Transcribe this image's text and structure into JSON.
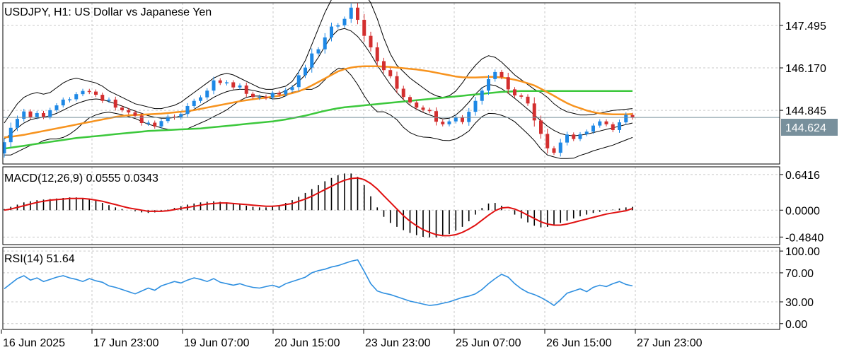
{
  "chart_data": [
    {
      "type": "candlestick",
      "title": "USDJPY, H1:  US Dollar vs Japanese Yen",
      "symbol": "USDJPY",
      "timeframe": "H1",
      "current_price": 144.624,
      "current_price_label": "144.624",
      "y_ticks": [
        147.495,
        146.17,
        144.845
      ],
      "y_tick_labels": [
        "147.495",
        "146.170",
        "144.845"
      ],
      "ylim": [
        143.17,
        148.2
      ],
      "grid": true,
      "candles_open": [
        143.5,
        143.85,
        144.3,
        144.58,
        144.81,
        144.63,
        144.76,
        144.64,
        144.85,
        145.0,
        145.18,
        145.19,
        145.35,
        145.45,
        145.43,
        145.33,
        145.14,
        145.18,
        144.93,
        144.85,
        144.78,
        144.68,
        144.45,
        144.46,
        144.34,
        144.51,
        144.65,
        144.62,
        144.73,
        144.98,
        145.14,
        145.25,
        145.46,
        145.78,
        145.7,
        145.72,
        145.56,
        145.62,
        145.36,
        145.26,
        145.27,
        145.24,
        145.39,
        145.34,
        145.48,
        145.57,
        145.94,
        146.18,
        146.62,
        146.75,
        147.12,
        147.46,
        147.5,
        147.7,
        148.05,
        147.67,
        147.17,
        146.81,
        146.38,
        146.1,
        145.91,
        145.52,
        145.26,
        145.09,
        144.93,
        144.86,
        144.82,
        144.49,
        144.41,
        144.5,
        144.63,
        144.48,
        144.8,
        145.14,
        145.46,
        145.82,
        146.04,
        145.88,
        145.5,
        145.31,
        145.27,
        145.06,
        144.53,
        144.11,
        143.66,
        143.52,
        143.84,
        144.09,
        143.95,
        144.1,
        144.18,
        144.37,
        144.5,
        144.41,
        144.23,
        144.47,
        144.7
      ],
      "candles_close": [
        143.85,
        144.3,
        144.58,
        144.81,
        144.63,
        144.76,
        144.64,
        144.85,
        145.0,
        145.18,
        145.19,
        145.35,
        145.45,
        145.43,
        145.33,
        145.14,
        145.18,
        144.93,
        144.85,
        144.78,
        144.68,
        144.45,
        144.46,
        144.34,
        144.51,
        144.65,
        144.62,
        144.73,
        144.98,
        145.14,
        145.25,
        145.46,
        145.78,
        145.7,
        145.72,
        145.56,
        145.62,
        145.36,
        145.26,
        145.27,
        145.24,
        145.39,
        145.34,
        145.48,
        145.57,
        145.94,
        146.18,
        146.62,
        146.75,
        147.12,
        147.46,
        147.5,
        147.7,
        148.05,
        147.67,
        147.17,
        146.81,
        146.38,
        146.1,
        145.91,
        145.52,
        145.26,
        145.09,
        144.93,
        144.86,
        144.82,
        144.49,
        144.41,
        144.5,
        144.63,
        144.48,
        144.8,
        145.14,
        145.46,
        145.82,
        146.04,
        145.88,
        145.5,
        145.31,
        145.27,
        145.06,
        144.53,
        144.11,
        143.66,
        143.52,
        143.84,
        144.09,
        143.95,
        144.1,
        144.18,
        144.37,
        144.5,
        144.41,
        144.23,
        144.47,
        144.7,
        144.62
      ],
      "ma_orange": [
        144.0,
        144.02,
        144.05,
        144.08,
        144.12,
        144.16,
        144.2,
        144.24,
        144.28,
        144.32,
        144.36,
        144.4,
        144.44,
        144.48,
        144.52,
        144.56,
        144.6,
        144.64,
        144.67,
        144.69,
        144.7,
        144.71,
        144.72,
        144.73,
        144.74,
        144.76,
        144.78,
        144.8,
        144.82,
        144.85,
        144.89,
        144.93,
        144.97,
        145.01,
        145.05,
        145.09,
        145.13,
        145.16,
        145.19,
        145.22,
        145.24,
        145.27,
        145.3,
        145.34,
        145.38,
        145.44,
        145.52,
        145.62,
        145.73,
        145.84,
        145.95,
        146.06,
        146.13,
        146.18,
        146.21,
        146.22,
        146.22,
        146.22,
        146.21,
        146.2,
        146.18,
        146.16,
        146.14,
        146.12,
        146.09,
        146.06,
        146.02,
        145.98,
        145.94,
        145.9,
        145.88,
        145.87,
        145.87,
        145.88,
        145.89,
        145.89,
        145.87,
        145.84,
        145.8,
        145.75,
        145.69,
        145.62,
        145.52,
        145.41,
        145.3,
        145.18,
        145.07,
        144.98,
        144.91,
        144.84,
        144.79,
        144.75,
        144.73,
        144.72,
        144.72,
        144.72,
        144.73
      ],
      "ma_green": [
        143.65,
        143.68,
        143.71,
        143.74,
        143.77,
        143.8,
        143.83,
        143.86,
        143.89,
        143.92,
        143.95,
        143.98,
        144.0,
        144.02,
        144.04,
        144.06,
        144.08,
        144.1,
        144.12,
        144.14,
        144.16,
        144.18,
        144.2,
        144.21,
        144.22,
        144.23,
        144.24,
        144.25,
        144.26,
        144.27,
        144.28,
        144.3,
        144.32,
        144.34,
        144.36,
        144.38,
        144.4,
        144.42,
        144.44,
        144.46,
        144.48,
        144.5,
        144.53,
        144.56,
        144.6,
        144.64,
        144.68,
        144.73,
        144.78,
        144.83,
        144.87,
        144.91,
        144.94,
        144.96,
        144.98,
        145.0,
        145.02,
        145.04,
        145.06,
        145.08,
        145.1,
        145.12,
        145.14,
        145.16,
        145.18,
        145.2,
        145.22,
        145.24,
        145.26,
        145.28,
        145.3,
        145.32,
        145.34,
        145.36,
        145.38,
        145.4,
        145.42,
        145.43,
        145.44,
        145.45,
        145.45,
        145.45,
        145.45,
        145.45,
        145.45,
        145.45,
        145.45,
        145.45,
        145.45,
        145.45,
        145.45,
        145.45,
        145.45,
        145.45,
        145.45,
        145.45,
        145.45
      ],
      "bb_upper": [
        144.45,
        144.75,
        145.05,
        145.25,
        145.35,
        145.4,
        145.35,
        145.4,
        145.55,
        145.7,
        145.8,
        145.85,
        145.8,
        145.75,
        145.7,
        145.6,
        145.45,
        145.35,
        145.25,
        145.15,
        145.05,
        145.0,
        144.95,
        144.9,
        144.9,
        144.95,
        145.0,
        145.1,
        145.25,
        145.4,
        145.55,
        145.7,
        145.85,
        145.95,
        146.0,
        145.95,
        145.85,
        145.75,
        145.65,
        145.55,
        145.5,
        145.5,
        145.55,
        145.6,
        145.75,
        146.05,
        146.4,
        146.9,
        147.4,
        147.9,
        148.3,
        148.55,
        148.65,
        148.7,
        148.65,
        148.5,
        148.2,
        147.7,
        147.1,
        146.6,
        146.25,
        146.05,
        145.85,
        145.7,
        145.55,
        145.4,
        145.3,
        145.25,
        145.3,
        145.45,
        145.7,
        146.0,
        146.25,
        146.45,
        146.55,
        146.5,
        146.35,
        146.15,
        145.95,
        145.8,
        145.65,
        145.5,
        145.4,
        145.25,
        145.05,
        144.9,
        144.8,
        144.75,
        144.7,
        144.7,
        144.72,
        144.76,
        144.8,
        144.84,
        144.86,
        144.88,
        144.9
      ],
      "bb_mid": [
        143.95,
        144.1,
        144.3,
        144.45,
        144.55,
        144.6,
        144.63,
        144.68,
        144.75,
        144.85,
        144.95,
        145.05,
        145.12,
        145.18,
        145.2,
        145.18,
        145.12,
        145.05,
        144.98,
        144.9,
        144.82,
        144.75,
        144.68,
        144.63,
        144.6,
        144.6,
        144.62,
        144.67,
        144.76,
        144.88,
        145.0,
        145.12,
        145.25,
        145.35,
        145.43,
        145.48,
        145.5,
        145.5,
        145.47,
        145.42,
        145.38,
        145.35,
        145.38,
        145.45,
        145.58,
        145.75,
        145.95,
        146.2,
        146.5,
        146.85,
        147.15,
        147.35,
        147.4,
        147.32,
        147.15,
        146.9,
        146.6,
        146.25,
        145.95,
        145.65,
        145.4,
        145.18,
        145.0,
        144.88,
        144.78,
        144.7,
        144.63,
        144.58,
        144.6,
        144.7,
        144.88,
        145.1,
        145.35,
        145.55,
        145.65,
        145.62,
        145.52,
        145.38,
        145.22,
        145.05,
        144.88,
        144.7,
        144.52,
        144.35,
        144.22,
        144.12,
        144.07,
        144.05,
        144.07,
        144.1,
        144.15,
        144.2,
        144.25,
        144.3,
        144.35,
        144.4,
        144.45
      ],
      "bb_lower": [
        143.45,
        143.45,
        143.55,
        143.65,
        143.75,
        143.8,
        143.9,
        143.95,
        143.95,
        144.0,
        144.1,
        144.25,
        144.44,
        144.61,
        144.7,
        144.76,
        144.79,
        144.75,
        144.71,
        144.65,
        144.59,
        144.5,
        144.41,
        144.36,
        144.3,
        144.25,
        144.24,
        144.24,
        144.27,
        144.36,
        144.45,
        144.54,
        144.65,
        144.75,
        144.86,
        145.01,
        145.15,
        145.25,
        145.29,
        145.29,
        145.26,
        145.2,
        145.21,
        145.3,
        145.41,
        145.45,
        145.5,
        145.5,
        145.6,
        145.8,
        146.0,
        146.15,
        146.15,
        145.94,
        145.65,
        145.3,
        145.0,
        144.8,
        144.8,
        144.7,
        144.55,
        144.31,
        144.15,
        144.06,
        144.01,
        144.0,
        143.96,
        143.91,
        143.9,
        143.95,
        144.06,
        144.2,
        144.45,
        144.65,
        144.75,
        144.74,
        144.69,
        144.61,
        144.49,
        144.3,
        144.11,
        143.9,
        143.64,
        143.45,
        143.39,
        143.34,
        143.34,
        143.35,
        143.44,
        143.5,
        143.58,
        143.64,
        143.7,
        143.76,
        143.84,
        143.92,
        144.0
      ]
    },
    {
      "type": "bar",
      "title": "MACD(12,26,9) 0.0555 0.0343",
      "indicator": "MACD",
      "params": [
        12,
        26,
        9
      ],
      "macd_value": 0.0555,
      "signal_value": 0.0343,
      "y_ticks": [
        0.6416,
        0.0,
        -0.484
      ],
      "y_tick_labels": [
        "0.6416",
        "0.0000",
        "-0.4840"
      ],
      "ylim": [
        -0.62,
        0.78
      ],
      "histogram": [
        0.02,
        0.06,
        0.1,
        0.14,
        0.16,
        0.18,
        0.19,
        0.2,
        0.21,
        0.22,
        0.23,
        0.23,
        0.22,
        0.2,
        0.17,
        0.13,
        0.09,
        0.05,
        0.02,
        0.0,
        -0.02,
        -0.04,
        -0.05,
        -0.04,
        -0.02,
        0.01,
        0.04,
        0.07,
        0.1,
        0.12,
        0.14,
        0.15,
        0.16,
        0.15,
        0.14,
        0.12,
        0.1,
        0.08,
        0.06,
        0.05,
        0.05,
        0.06,
        0.09,
        0.13,
        0.18,
        0.24,
        0.31,
        0.38,
        0.45,
        0.52,
        0.58,
        0.63,
        0.66,
        0.66,
        0.6,
        0.45,
        0.25,
        0.05,
        -0.12,
        -0.23,
        -0.3,
        -0.36,
        -0.41,
        -0.45,
        -0.48,
        -0.49,
        -0.49,
        -0.47,
        -0.43,
        -0.37,
        -0.3,
        -0.2,
        -0.08,
        0.04,
        0.12,
        0.13,
        0.08,
        0.0,
        -0.08,
        -0.15,
        -0.22,
        -0.28,
        -0.31,
        -0.3,
        -0.27,
        -0.23,
        -0.19,
        -0.15,
        -0.11,
        -0.08,
        -0.05,
        -0.03,
        -0.01,
        0.01,
        0.03,
        0.05,
        0.06
      ],
      "signal": [
        0.0,
        0.02,
        0.05,
        0.08,
        0.11,
        0.14,
        0.16,
        0.18,
        0.19,
        0.2,
        0.21,
        0.21,
        0.21,
        0.2,
        0.18,
        0.16,
        0.13,
        0.1,
        0.07,
        0.04,
        0.02,
        0.0,
        -0.02,
        -0.02,
        -0.02,
        -0.01,
        0.01,
        0.03,
        0.05,
        0.07,
        0.09,
        0.11,
        0.12,
        0.13,
        0.13,
        0.12,
        0.11,
        0.1,
        0.09,
        0.08,
        0.07,
        0.07,
        0.08,
        0.1,
        0.12,
        0.16,
        0.2,
        0.25,
        0.31,
        0.37,
        0.43,
        0.49,
        0.54,
        0.57,
        0.58,
        0.55,
        0.48,
        0.38,
        0.26,
        0.14,
        0.02,
        -0.1,
        -0.2,
        -0.28,
        -0.35,
        -0.4,
        -0.44,
        -0.46,
        -0.46,
        -0.44,
        -0.4,
        -0.34,
        -0.27,
        -0.18,
        -0.09,
        -0.01,
        0.04,
        0.05,
        0.02,
        -0.03,
        -0.09,
        -0.15,
        -0.21,
        -0.25,
        -0.27,
        -0.27,
        -0.25,
        -0.22,
        -0.19,
        -0.16,
        -0.13,
        -0.1,
        -0.07,
        -0.05,
        -0.03,
        -0.01,
        0.03
      ]
    },
    {
      "type": "line",
      "title": "RSI(14) 51.64",
      "indicator": "RSI",
      "period": 14,
      "value": 51.64,
      "y_ticks": [
        100,
        70,
        30,
        0
      ],
      "y_tick_labels": [
        "100.00",
        "70.00",
        "30.00",
        "0.00"
      ],
      "ylim": [
        -8,
        105
      ],
      "series": [
        {
          "values": [
            48,
            55,
            62,
            66,
            60,
            63,
            58,
            61,
            64,
            66,
            63,
            61,
            58,
            62,
            59,
            57,
            52,
            50,
            47,
            44,
            41,
            45,
            49,
            46,
            52,
            55,
            58,
            56,
            60,
            63,
            61,
            58,
            62,
            57,
            55,
            53,
            55,
            52,
            50,
            49,
            51,
            53,
            50,
            55,
            58,
            61,
            64,
            70,
            73,
            75,
            78,
            80,
            83,
            86,
            88,
            72,
            55,
            45,
            42,
            40,
            37,
            34,
            31,
            29,
            27,
            25,
            26,
            28,
            30,
            33,
            36,
            38,
            41,
            47,
            55,
            62,
            68,
            64,
            55,
            48,
            43,
            40,
            36,
            31,
            25,
            33,
            42,
            45,
            48,
            44,
            50,
            53,
            51,
            55,
            58,
            54,
            52
          ]
        }
      ]
    }
  ],
  "x_tick_labels": [
    "16 Jun 2025",
    "17 Jun 23:00",
    "19 Jun 07:00",
    "20 Jun 15:00",
    "23 Jun 23:00",
    "25 Jun 07:00",
    "26 Jun 15:00",
    "27 Jun 23:00"
  ],
  "colors": {
    "background": "#ffffff",
    "border": "#000000",
    "grid": "#c9c9c9",
    "bull_candle": "#1e88e5",
    "bear_candle": "#d32f2f",
    "ma_orange": "#f7931e",
    "ma_green": "#3cc83c",
    "bollinger": "#000000",
    "macd_signal": "#e01010",
    "macd_histogram": "#000000",
    "rsi_line": "#2e8fe0",
    "price_tag_bg": "#78909c",
    "price_line": "#78909c"
  }
}
